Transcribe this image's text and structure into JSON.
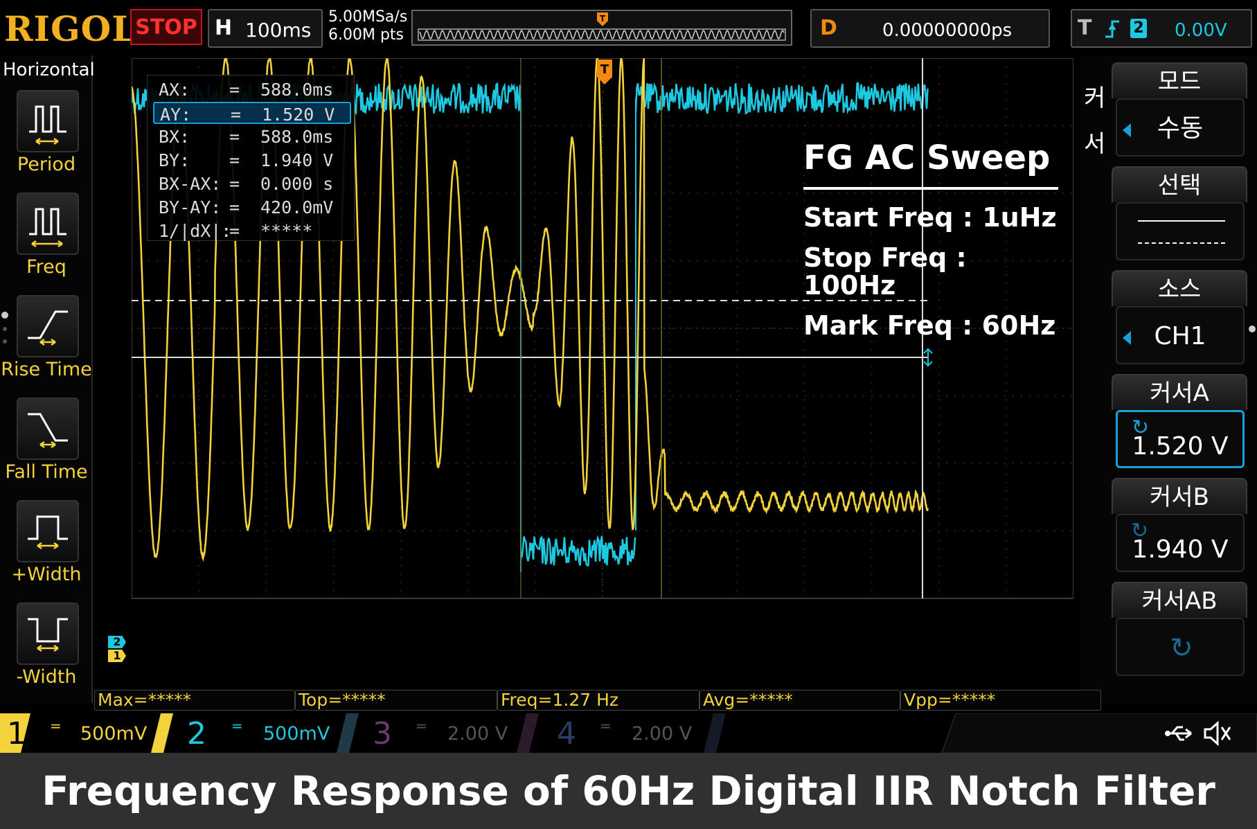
{
  "topbar": {
    "brand": "RIGOL",
    "run_state": "STOP",
    "timebase_label": "H",
    "timebase_value": "100ms",
    "sample_rate": "5.00MSa/s",
    "memory_depth": "6.00M pts",
    "delay_label": "D",
    "delay_value": "0.00000000ps",
    "trigger_label": "T",
    "trigger_source": "2",
    "trigger_level": "0.00V"
  },
  "left_panel": {
    "title": "Horizontal",
    "items": [
      {
        "label": "Period",
        "icon": "period-icon"
      },
      {
        "label": "Freq",
        "icon": "freq-icon"
      },
      {
        "label": "Rise Time",
        "icon": "rise-time-icon"
      },
      {
        "label": "Fall Time",
        "icon": "fall-time-icon"
      },
      {
        "label": "+Width",
        "icon": "positive-width-icon"
      },
      {
        "label": "-Width",
        "icon": "negative-width-icon"
      }
    ]
  },
  "cursor_readout": [
    {
      "key": "AX:",
      "eq": "=",
      "value": "588.0ms"
    },
    {
      "key": "AY:",
      "eq": "=",
      "value": "1.520 V"
    },
    {
      "key": "BX:",
      "eq": "=",
      "value": "588.0ms"
    },
    {
      "key": "BY:",
      "eq": "=",
      "value": "1.940 V"
    },
    {
      "key": "BX-AX:",
      "eq": "=",
      "value": "0.000 s"
    },
    {
      "key": "BY-AY:",
      "eq": "=",
      "value": "420.0mV"
    },
    {
      "key": "1/|dX|:",
      "eq": "=",
      "value": "*****"
    }
  ],
  "annotation": {
    "title": "FG AC Sweep",
    "lines": [
      "Start Freq : 1uHz",
      "Stop Freq : 100Hz",
      "Mark Freq : 60Hz"
    ]
  },
  "markers": {
    "ch2": "2",
    "ch1": "1",
    "trigger_top": "T",
    "trigger_right": "T"
  },
  "right_menu": {
    "side_label_top": "커",
    "side_label_bottom": "서",
    "items": [
      {
        "header": "모드",
        "value": "수동"
      },
      {
        "header": "선택",
        "value": ""
      },
      {
        "header": "소스",
        "value": "CH1"
      },
      {
        "header": "커서A",
        "value": "1.520 V"
      },
      {
        "header": "커서B",
        "value": "1.940 V"
      },
      {
        "header": "커서AB",
        "value": ""
      }
    ]
  },
  "measurements": [
    "Max=*****",
    "Top=*****",
    "Freq=1.27 Hz",
    "Avg=*****",
    "Vpp=*****"
  ],
  "channels": [
    {
      "num": "1",
      "coupling": "=",
      "scale": "500mV",
      "color": "#f3d23b"
    },
    {
      "num": "2",
      "coupling": "=",
      "scale": "500mV",
      "color": "#1ec8e0"
    },
    {
      "num": "3",
      "coupling": "=",
      "scale": "2.00 V",
      "color": "#6a3a6a"
    },
    {
      "num": "4",
      "coupling": "=",
      "scale": "2.00 V",
      "color": "#2a3d66"
    }
  ],
  "caption": "Frequency Response of 60Hz Digital IIR Notch Filter",
  "colors": {
    "ch1": "#f3d23b",
    "ch2": "#1ec8e0",
    "accent": "#1aa0d8",
    "trigger": "#f08a10",
    "stop": "#ff3030"
  },
  "waveform": {
    "ch1": {
      "description_free": true,
      "sweep_start_hz": 1e-06,
      "sweep_stop_hz": 100,
      "notch_hz": 60
    }
  }
}
